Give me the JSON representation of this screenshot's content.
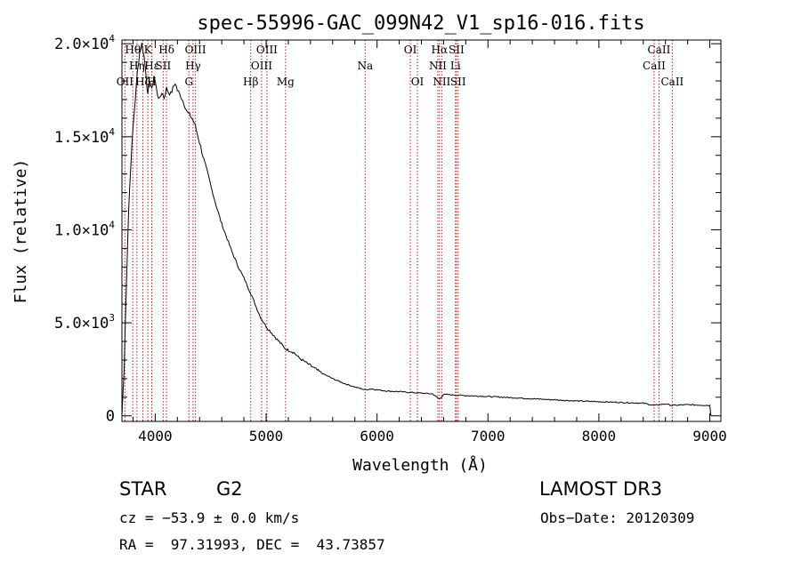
{
  "chart_data": {
    "type": "line",
    "title": "spec-55996-GAC_099N42_V1_sp16-016.fits",
    "xlabel": "Wavelength (Å)",
    "ylabel": "Flux (relative)",
    "xlim": [
      3700,
      9100
    ],
    "ylim": [
      -300,
      20200
    ],
    "x_ticks": [
      4000,
      5000,
      6000,
      7000,
      8000,
      9000
    ],
    "x_tick_labels": [
      "4000",
      "5000",
      "6000",
      "7000",
      "8000",
      "9000"
    ],
    "y_ticks": [
      {
        "value": 0,
        "mant": "0",
        "exp": ""
      },
      {
        "value": 5000,
        "mant": "5.0×10",
        "exp": "3"
      },
      {
        "value": 10000,
        "mant": "1.0×10",
        "exp": "4"
      },
      {
        "value": 15000,
        "mant": "1.5×10",
        "exp": "4"
      },
      {
        "value": 20000,
        "mant": "2.0×10",
        "exp": "4"
      }
    ],
    "series": [
      {
        "name": "spectrum",
        "color": "#000000",
        "x": [
          3700,
          3720,
          3740,
          3760,
          3780,
          3800,
          3820,
          3840,
          3860,
          3880,
          3900,
          3920,
          3933,
          3950,
          3968,
          3990,
          4020,
          4040,
          4060,
          4080,
          4102,
          4120,
          4140,
          4160,
          4180,
          4200,
          4230,
          4260,
          4290,
          4320,
          4340,
          4360,
          4400,
          4450,
          4500,
          4550,
          4600,
          4650,
          4700,
          4750,
          4800,
          4861,
          4900,
          4950,
          5000,
          5100,
          5175,
          5250,
          5300,
          5400,
          5500,
          5600,
          5700,
          5800,
          5893,
          5950,
          6000,
          6100,
          6200,
          6300,
          6400,
          6500,
          6563,
          6600,
          6700,
          6800,
          7000,
          7200,
          7400,
          7600,
          7800,
          8000,
          8200,
          8400,
          8498,
          8542,
          8600,
          8662,
          8800,
          9000,
          9010
        ],
        "y": [
          0,
          2500,
          7000,
          11000,
          13500,
          15500,
          17000,
          18500,
          19500,
          20000,
          19300,
          18200,
          17200,
          18100,
          17500,
          18300,
          17300,
          17000,
          17400,
          17100,
          17600,
          17400,
          17300,
          17600,
          17900,
          17500,
          17200,
          16800,
          16300,
          16100,
          15900,
          15600,
          14700,
          13500,
          12400,
          11300,
          10300,
          9500,
          8700,
          8000,
          7400,
          6600,
          6000,
          5300,
          4800,
          4100,
          3600,
          3400,
          3100,
          2700,
          2300,
          2000,
          1750,
          1550,
          1400,
          1450,
          1400,
          1330,
          1300,
          1260,
          1220,
          1180,
          900,
          1150,
          1120,
          1090,
          1040,
          980,
          920,
          860,
          800,
          760,
          720,
          680,
          560,
          600,
          640,
          560,
          600,
          560,
          0
        ]
      }
    ],
    "line_color": "#c02020",
    "lines": [
      {
        "wl": 3727,
        "label": "OII",
        "row": 3
      },
      {
        "wl": 3798,
        "label": "Hθ",
        "row": 1
      },
      {
        "wl": 3835,
        "label": "Hη",
        "row": 2
      },
      {
        "wl": 3889,
        "label": "Hζ",
        "row": 3
      },
      {
        "wl": 3934,
        "label": "K",
        "row": 1
      },
      {
        "wl": 3969,
        "label": "H",
        "row": 3
      },
      {
        "wl": 3970,
        "label": "Hε",
        "row": 2
      },
      {
        "wl": 4072,
        "label": "SII",
        "row": 2
      },
      {
        "wl": 4102,
        "label": "Hδ",
        "row": 1
      },
      {
        "wl": 4304,
        "label": "G",
        "row": 3
      },
      {
        "wl": 4341,
        "label": "Hγ",
        "row": 2
      },
      {
        "wl": 4363,
        "label": "OIII",
        "row": 1
      },
      {
        "wl": 4861,
        "label": "Hβ",
        "row": 3
      },
      {
        "wl": 4959,
        "label": "OIII",
        "row": 2
      },
      {
        "wl": 5007,
        "label": "OIII",
        "row": 1
      },
      {
        "wl": 5175,
        "label": "Mg",
        "row": 3
      },
      {
        "wl": 5893,
        "label": "Na",
        "row": 2
      },
      {
        "wl": 6300,
        "label": "OI",
        "row": 1
      },
      {
        "wl": 6364,
        "label": "OI",
        "row": 3
      },
      {
        "wl": 6548,
        "label": "NII",
        "row": 2
      },
      {
        "wl": 6563,
        "label": "Hα",
        "row": 1
      },
      {
        "wl": 6583,
        "label": "NII",
        "row": 3
      },
      {
        "wl": 6707,
        "label": "Li",
        "row": 2
      },
      {
        "wl": 6716,
        "label": "SII",
        "row": 1
      },
      {
        "wl": 6731,
        "label": "SII",
        "row": 3
      },
      {
        "wl": 8498,
        "label": "CaII",
        "row": 2
      },
      {
        "wl": 8542,
        "label": "CaII",
        "row": 1
      },
      {
        "wl": 8662,
        "label": "CaII",
        "row": 3
      }
    ]
  },
  "info": {
    "class": "STAR",
    "subclass": "G2",
    "survey": "LAMOST DR3",
    "cz": "cz = −53.9 ± 0.0 km/s",
    "obs_date": "Obs−Date: 20120309",
    "coords": "RA =  97.31993, DEC =  43.73857"
  }
}
